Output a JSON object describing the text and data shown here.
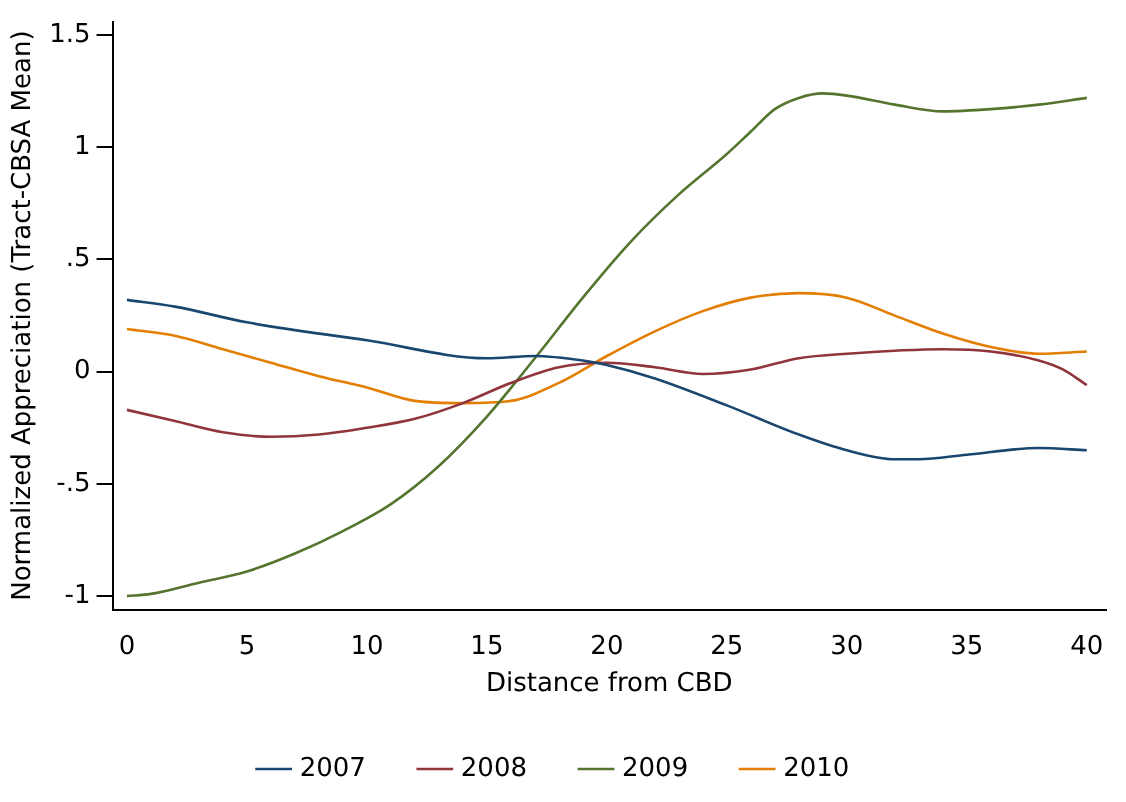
{
  "chart_data": {
    "type": "line",
    "xlabel": "Distance from CBD",
    "ylabel": "Normalized Appreciation (Tract-CBSA Mean)",
    "xlim": [
      -0.6,
      40.8
    ],
    "xticks": [
      0,
      5,
      10,
      15,
      20,
      25,
      30,
      35,
      40
    ],
    "ylim": [
      -1.06,
      1.56
    ],
    "yticks": [
      {
        "value": -1,
        "label": "-1"
      },
      {
        "value": -0.5,
        "label": "-.5"
      },
      0,
      {
        "value": 0.5,
        "label": ".5"
      },
      1,
      1.5
    ],
    "grid": false,
    "legend": "bottom",
    "marker": "none",
    "line_style": "solid",
    "series": [
      {
        "name": "2007",
        "color": "#1a476f",
        "x": [
          0,
          2,
          5,
          10,
          15,
          17,
          19,
          20,
          22,
          25,
          28,
          30,
          32,
          33,
          35,
          38,
          40
        ],
        "values": [
          0.32,
          0.29,
          0.22,
          0.14,
          0.06,
          0.07,
          0.05,
          0.03,
          -0.03,
          -0.15,
          -0.28,
          -0.35,
          -0.39,
          -0.39,
          -0.37,
          -0.34,
          -0.35
        ]
      },
      {
        "name": "2008",
        "color": "#90353b",
        "x": [
          0,
          2,
          4,
          6,
          8,
          10,
          12,
          14,
          16,
          18,
          20,
          22,
          24,
          26,
          28,
          30,
          34,
          36,
          38,
          39,
          40
        ],
        "values": [
          -0.17,
          -0.22,
          -0.27,
          -0.29,
          -0.28,
          -0.25,
          -0.21,
          -0.14,
          -0.05,
          0.02,
          0.04,
          0.02,
          -0.01,
          0.01,
          0.06,
          0.08,
          0.1,
          0.09,
          0.05,
          0.01,
          -0.06
        ]
      },
      {
        "name": "2009",
        "color": "#55752f",
        "x": [
          0,
          1,
          3,
          5,
          7,
          9,
          11,
          13,
          15,
          17,
          19,
          21,
          23,
          25,
          26,
          27,
          28,
          29,
          30,
          32,
          34,
          36,
          38,
          40
        ],
        "values": [
          -1.0,
          -0.99,
          -0.94,
          -0.89,
          -0.81,
          -0.71,
          -0.59,
          -0.42,
          -0.2,
          0.06,
          0.33,
          0.58,
          0.79,
          0.97,
          1.07,
          1.17,
          1.22,
          1.24,
          1.23,
          1.19,
          1.16,
          1.17,
          1.19,
          1.22
        ]
      },
      {
        "name": "2010",
        "color": "#e37e00",
        "x": [
          0,
          2,
          4,
          6,
          8,
          10,
          12,
          14,
          16,
          18,
          20,
          22,
          24,
          26,
          28,
          30,
          32,
          34,
          36,
          38,
          40
        ],
        "values": [
          0.19,
          0.16,
          0.1,
          0.04,
          -0.02,
          -0.07,
          -0.13,
          -0.14,
          -0.13,
          -0.05,
          0.07,
          0.18,
          0.27,
          0.33,
          0.35,
          0.33,
          0.25,
          0.17,
          0.11,
          0.08,
          0.09
        ]
      }
    ]
  }
}
